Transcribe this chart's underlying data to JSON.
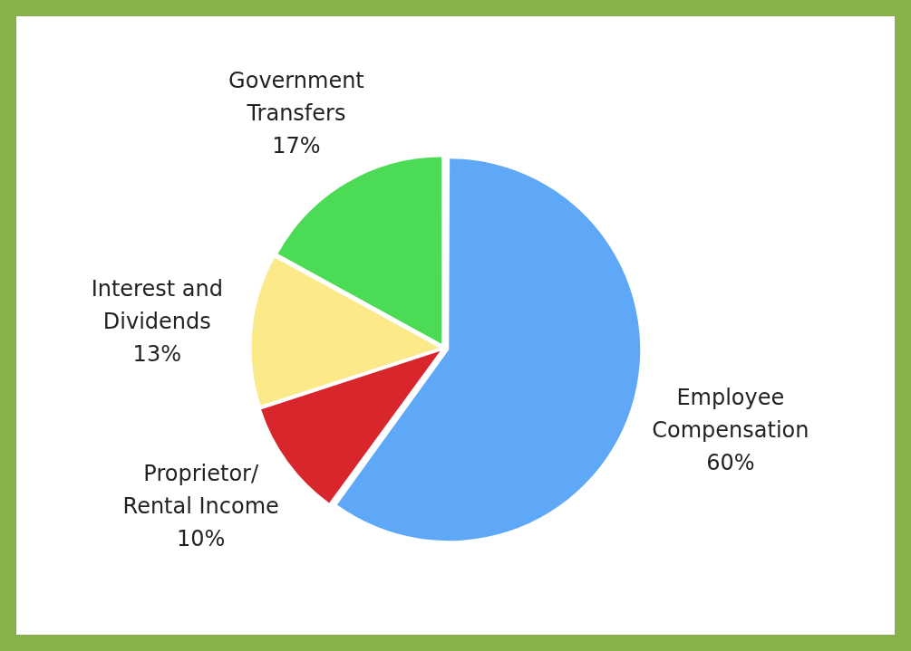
{
  "chart_data": {
    "type": "pie",
    "categories": [
      "Employee Compensation",
      "Proprietor/ Rental Income",
      "Interest and Dividends",
      "Government Transfers"
    ],
    "values": [
      60,
      10,
      13,
      17
    ],
    "colors": [
      "#5fa8f8",
      "#d8262c",
      "#fbe98a",
      "#4cdb55"
    ],
    "value_labels": [
      "60%",
      "10%",
      "13%",
      "17%"
    ],
    "legend": false
  }
}
